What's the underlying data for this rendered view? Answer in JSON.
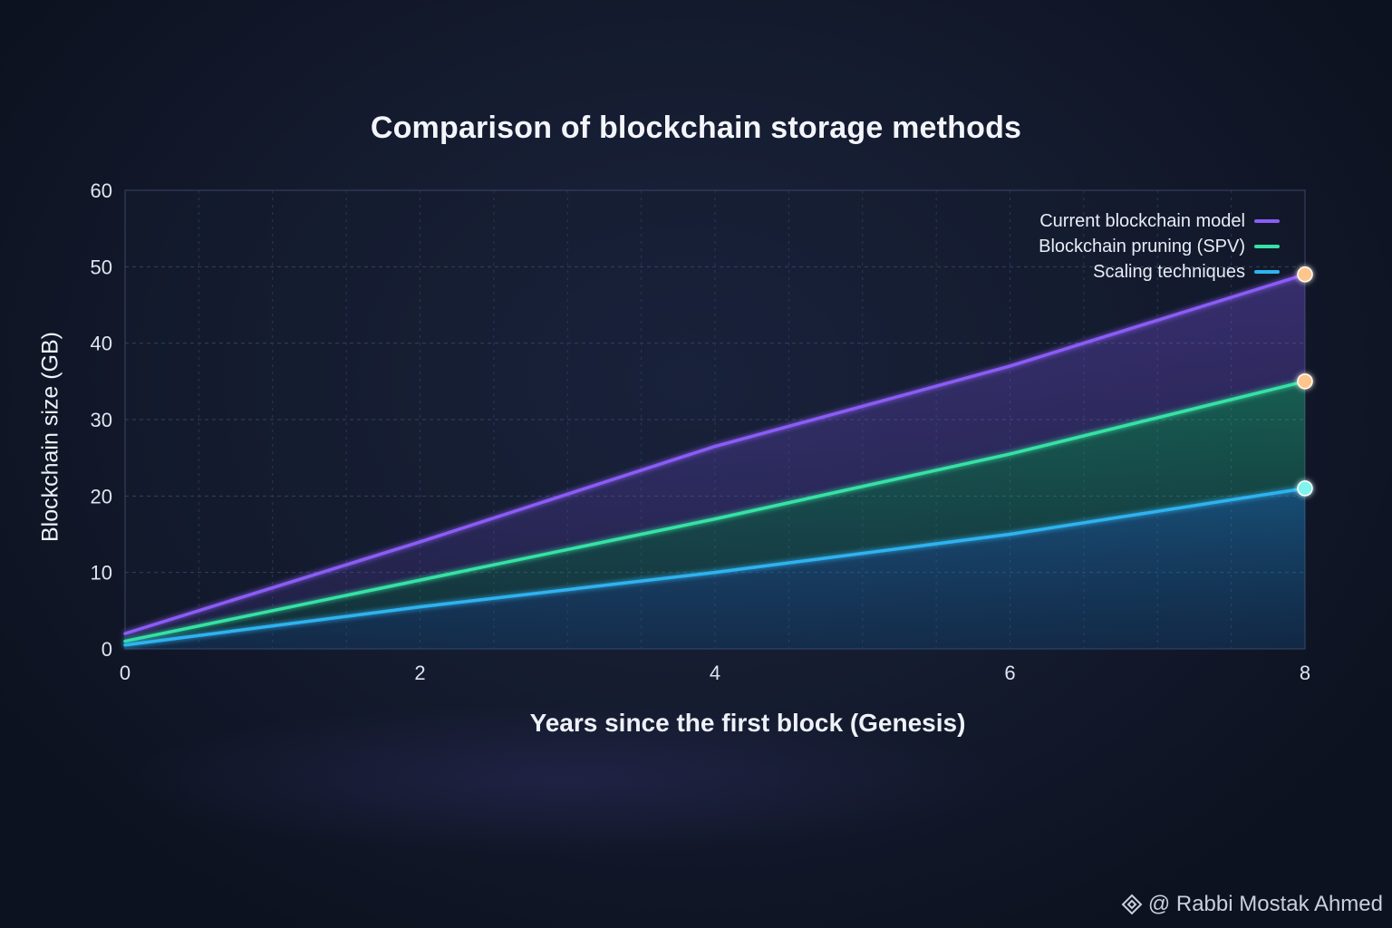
{
  "chart_data": {
    "type": "line",
    "title": "Comparison of blockchain storage methods",
    "xlabel": "Years since the first block (Genesis)",
    "ylabel": "Blockchain size (GB)",
    "xlim": [
      0,
      8
    ],
    "ylim": [
      0,
      60
    ],
    "x_ticks": [
      0,
      2,
      4,
      6,
      8
    ],
    "y_ticks": [
      0,
      10,
      20,
      30,
      40,
      50,
      60
    ],
    "x": [
      0,
      2,
      4,
      6,
      8
    ],
    "series": [
      {
        "name": "Current blockchain model",
        "values": [
          2,
          14,
          26.5,
          37,
          49
        ],
        "color": "#8b5cf6"
      },
      {
        "name": "Blockchain pruning (SPV)",
        "values": [
          1,
          9,
          17,
          25.5,
          35
        ],
        "color": "#34e3a4"
      },
      {
        "name": "Scaling techniques",
        "values": [
          0.5,
          5.5,
          10,
          15,
          21
        ],
        "color": "#2fb3f0"
      }
    ],
    "end_marker_colors": [
      "#ffc58a",
      "#ffc58a",
      "#7ff3ec"
    ],
    "grid": true,
    "legend_position": "top-right"
  },
  "watermark": {
    "text": "@ Rabbi  Mostak Ahmed",
    "icon": "diamond-logo-icon"
  }
}
